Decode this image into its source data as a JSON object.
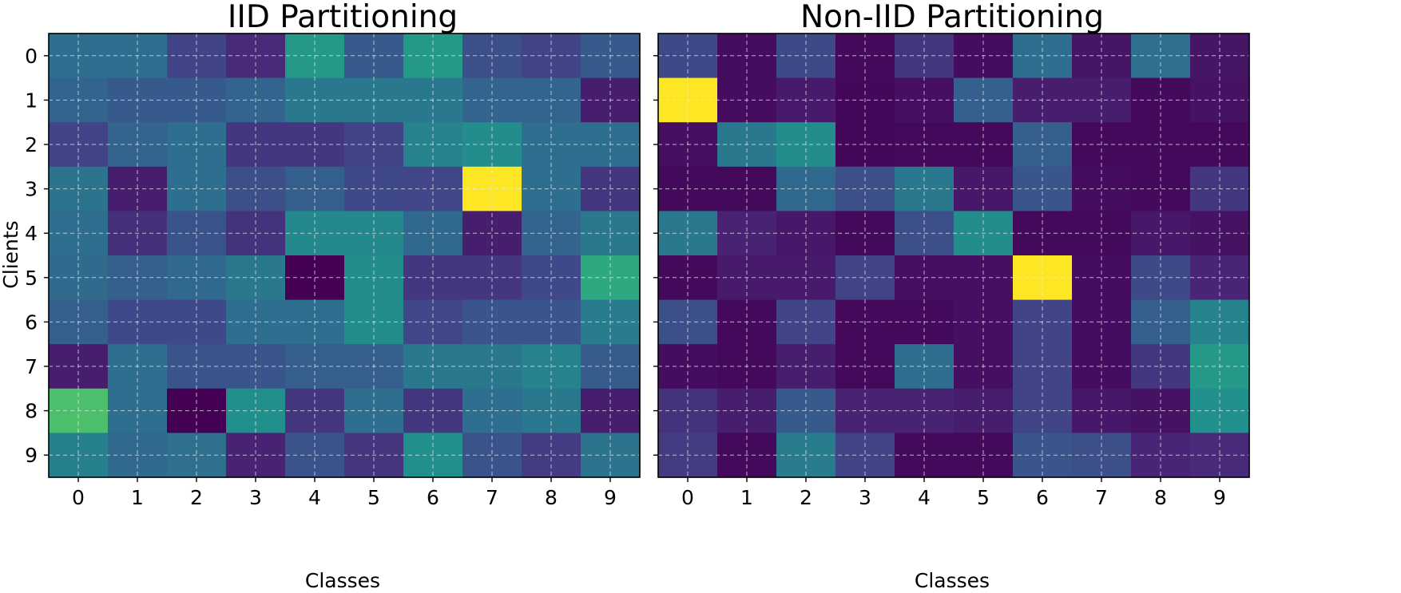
{
  "chart_data": [
    {
      "type": "heatmap",
      "title": "IID Partitioning",
      "xlabel": "Classes",
      "ylabel": "Clients",
      "x_ticks": [
        "0",
        "1",
        "2",
        "3",
        "4",
        "5",
        "6",
        "7",
        "8",
        "9"
      ],
      "y_ticks": [
        "0",
        "1",
        "2",
        "3",
        "4",
        "5",
        "6",
        "7",
        "8",
        "9"
      ],
      "colormap": "viridis",
      "grid": true,
      "values": [
        [
          0.45,
          0.45,
          0.25,
          0.15,
          0.65,
          0.35,
          0.65,
          0.3,
          0.25,
          0.35
        ],
        [
          0.4,
          0.35,
          0.35,
          0.4,
          0.5,
          0.5,
          0.5,
          0.4,
          0.4,
          0.1
        ],
        [
          0.25,
          0.4,
          0.45,
          0.2,
          0.2,
          0.25,
          0.55,
          0.6,
          0.45,
          0.45
        ],
        [
          0.48,
          0.1,
          0.45,
          0.3,
          0.38,
          0.27,
          0.26,
          1.0,
          0.45,
          0.2
        ],
        [
          0.45,
          0.17,
          0.32,
          0.18,
          0.58,
          0.58,
          0.42,
          0.1,
          0.4,
          0.5
        ],
        [
          0.43,
          0.38,
          0.42,
          0.5,
          0.0,
          0.6,
          0.2,
          0.2,
          0.27,
          0.7
        ],
        [
          0.38,
          0.27,
          0.27,
          0.45,
          0.45,
          0.6,
          0.26,
          0.33,
          0.33,
          0.52
        ],
        [
          0.1,
          0.45,
          0.33,
          0.33,
          0.38,
          0.38,
          0.5,
          0.5,
          0.55,
          0.36
        ],
        [
          0.78,
          0.45,
          0.0,
          0.62,
          0.2,
          0.45,
          0.2,
          0.45,
          0.5,
          0.1
        ],
        [
          0.54,
          0.42,
          0.46,
          0.12,
          0.32,
          0.19,
          0.62,
          0.32,
          0.22,
          0.48
        ]
      ]
    },
    {
      "type": "heatmap",
      "title": "Non-IID Partitioning",
      "xlabel": "Classes",
      "ylabel": "",
      "x_ticks": [
        "0",
        "1",
        "2",
        "3",
        "4",
        "5",
        "6",
        "7",
        "8",
        "9"
      ],
      "y_ticks": [
        "0",
        "1",
        "2",
        "3",
        "4",
        "5",
        "6",
        "7",
        "8",
        "9"
      ],
      "colormap": "viridis",
      "grid": true,
      "values": [
        [
          0.27,
          0.04,
          0.28,
          0.03,
          0.2,
          0.04,
          0.45,
          0.07,
          0.46,
          0.07
        ],
        [
          1.0,
          0.04,
          0.09,
          0.02,
          0.05,
          0.38,
          0.1,
          0.1,
          0.03,
          0.06
        ],
        [
          0.05,
          0.5,
          0.6,
          0.02,
          0.03,
          0.03,
          0.38,
          0.03,
          0.03,
          0.03
        ],
        [
          0.03,
          0.03,
          0.42,
          0.3,
          0.5,
          0.08,
          0.33,
          0.04,
          0.03,
          0.2
        ],
        [
          0.5,
          0.12,
          0.08,
          0.03,
          0.3,
          0.6,
          0.03,
          0.03,
          0.08,
          0.06
        ],
        [
          0.03,
          0.09,
          0.09,
          0.25,
          0.05,
          0.05,
          1.0,
          0.04,
          0.28,
          0.13
        ],
        [
          0.3,
          0.03,
          0.25,
          0.03,
          0.03,
          0.05,
          0.25,
          0.04,
          0.38,
          0.55
        ],
        [
          0.04,
          0.03,
          0.1,
          0.03,
          0.45,
          0.05,
          0.25,
          0.04,
          0.2,
          0.65
        ],
        [
          0.18,
          0.1,
          0.35,
          0.12,
          0.12,
          0.1,
          0.25,
          0.08,
          0.06,
          0.62
        ],
        [
          0.22,
          0.03,
          0.52,
          0.25,
          0.03,
          0.03,
          0.33,
          0.3,
          0.13,
          0.15
        ]
      ]
    }
  ]
}
